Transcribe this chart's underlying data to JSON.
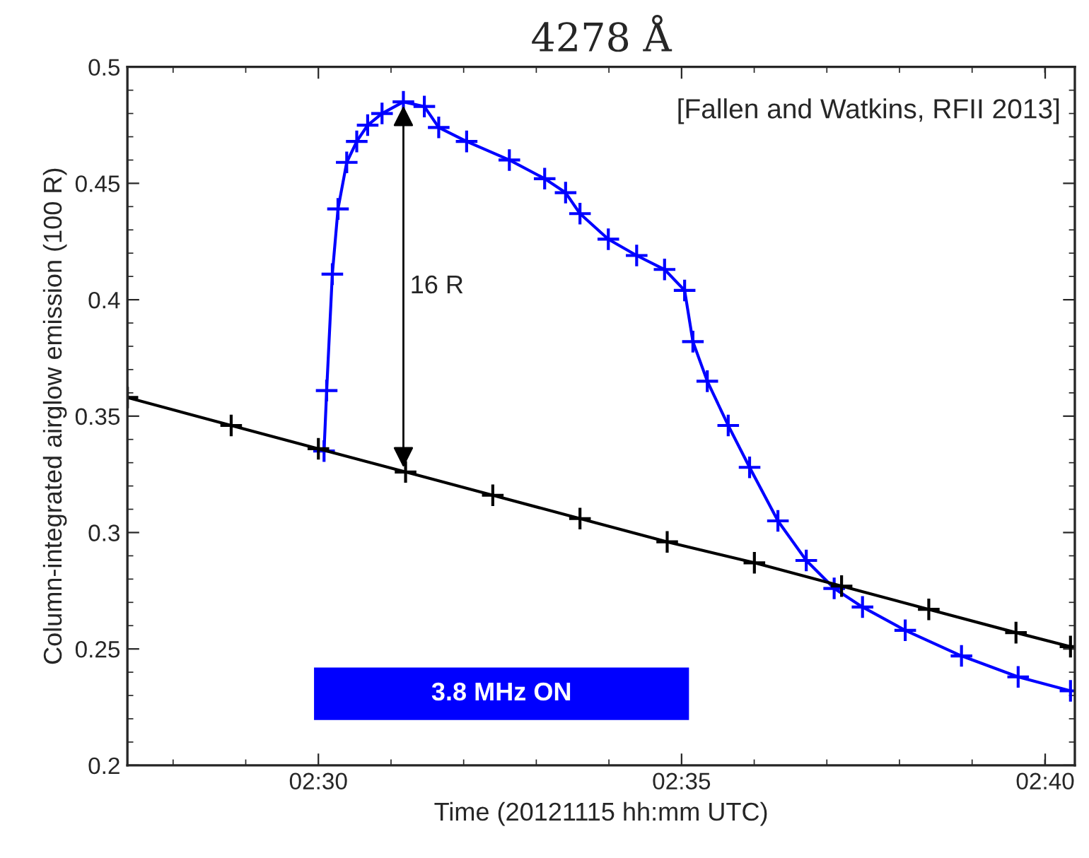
{
  "chart_data": {
    "type": "line",
    "title": "4278 Å",
    "xlabel": "Time (20121115 hh:mm UTC)",
    "ylabel": "Column-integrated airglow emission (100 R)",
    "xlim": [
      2.4562,
      2.6735
    ],
    "xticks": [
      {
        "value": 2.5,
        "label": "02:30"
      },
      {
        "value": 2.5833,
        "label": "02:35"
      },
      {
        "value": 2.6667,
        "label": "02:40"
      }
    ],
    "ylim": [
      0.2,
      0.5
    ],
    "yticks": [
      0.2,
      0.25,
      0.3,
      0.35,
      0.4,
      0.45,
      0.5
    ],
    "grid": false,
    "marker": "cross",
    "line_style": "solid",
    "series": [
      {
        "color": "#0000ff",
        "x": [
          2.5013,
          2.5019,
          2.5032,
          2.5045,
          2.5065,
          2.5088,
          2.5113,
          2.5146,
          2.5195,
          2.5243,
          2.5276,
          2.534,
          2.5438,
          2.5519,
          2.5567,
          2.56,
          2.5665,
          2.573,
          2.5794,
          2.584,
          2.5859,
          2.5892,
          2.594,
          2.5989,
          2.6054,
          2.6119,
          2.6183,
          2.6248,
          2.6346,
          2.6475,
          2.6605,
          2.6725
        ],
        "values": [
          0.335,
          0.361,
          0.411,
          0.439,
          0.459,
          0.468,
          0.475,
          0.48,
          0.485,
          0.483,
          0.474,
          0.468,
          0.46,
          0.452,
          0.446,
          0.437,
          0.426,
          0.419,
          0.413,
          0.404,
          0.382,
          0.365,
          0.346,
          0.328,
          0.305,
          0.288,
          0.276,
          0.268,
          0.258,
          0.247,
          0.238,
          0.232
        ]
      },
      {
        "color": "#000000",
        "x": [
          2.4562,
          2.48,
          2.5,
          2.52,
          2.54,
          2.56,
          2.58,
          2.6,
          2.62,
          2.64,
          2.66,
          2.6725
        ],
        "values": [
          0.358,
          0.346,
          0.336,
          0.326,
          0.316,
          0.306,
          0.296,
          0.287,
          0.277,
          0.267,
          0.257,
          0.251
        ]
      }
    ],
    "bands": [
      {
        "axis": "x",
        "from": 2.499,
        "to": 2.585,
        "label": "3.8 MHz ON",
        "color": "#0000ff"
      }
    ],
    "annotations": [
      "16 R",
      "[Fallen and Watkins, RFII 2013]"
    ]
  }
}
